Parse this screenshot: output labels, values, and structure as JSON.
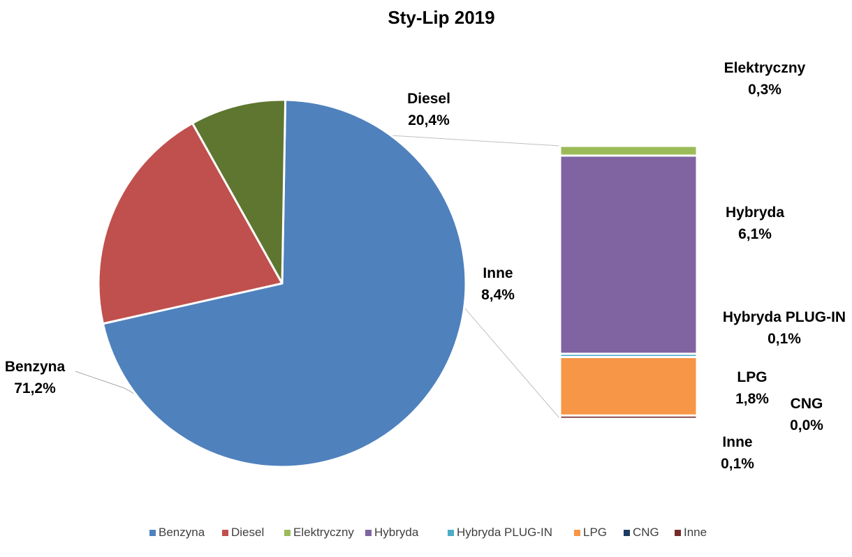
{
  "chart_data": {
    "type": "pie",
    "subtype": "bar-of-pie",
    "title": "Sty-Lip 2019",
    "legend_position": "bottom",
    "main": [
      {
        "key": "benzyna",
        "name": "Benzyna",
        "value": 71.2,
        "label": "71,2%",
        "color": "#4F81BD"
      },
      {
        "key": "diesel",
        "name": "Diesel",
        "value": 20.4,
        "label": "20,4%",
        "color": "#C0504D"
      },
      {
        "key": "inne_group",
        "name": "Inne",
        "value": 8.4,
        "label": "8,4%",
        "color": "#5E762F"
      }
    ],
    "breakdown": [
      {
        "key": "elektryczny",
        "name": "Elektryczny",
        "value": 0.3,
        "label": "0,3%",
        "color": "#9BBB59"
      },
      {
        "key": "hybryda",
        "name": "Hybryda",
        "value": 6.1,
        "label": "6,1%",
        "color": "#8064A2"
      },
      {
        "key": "plugin",
        "name": "Hybryda PLUG-IN",
        "value": 0.1,
        "label": "0,1%",
        "color": "#4BACC6"
      },
      {
        "key": "lpg",
        "name": "LPG",
        "value": 1.8,
        "label": "1,8%",
        "color": "#F79646"
      },
      {
        "key": "cng",
        "name": "CNG",
        "value": 0.0,
        "label": "0,0%",
        "color": "#1F3B63"
      },
      {
        "key": "inne",
        "name": "Inne",
        "value": 0.1,
        "label": "0,1%",
        "color": "#772C2A"
      }
    ],
    "legend": [
      {
        "name": "Benzyna",
        "color": "#4F81BD"
      },
      {
        "name": "Diesel",
        "color": "#C0504D"
      },
      {
        "name": "Elektryczny",
        "color": "#9BBB59"
      },
      {
        "name": "Hybryda",
        "color": "#8064A2"
      },
      {
        "name": "Hybryda PLUG-IN",
        "color": "#4BACC6"
      },
      {
        "name": "LPG",
        "color": "#F79646"
      },
      {
        "name": "CNG",
        "color": "#1F3B63"
      },
      {
        "name": "Inne",
        "color": "#772C2A"
      }
    ]
  }
}
